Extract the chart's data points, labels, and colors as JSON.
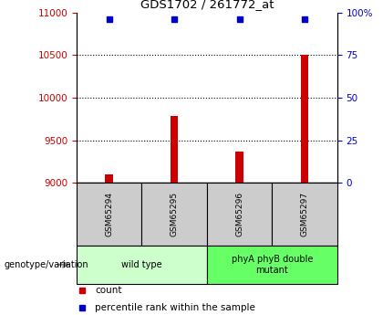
{
  "title": "GDS1702 / 261772_at",
  "samples": [
    "GSM65294",
    "GSM65295",
    "GSM65296",
    "GSM65297"
  ],
  "counts": [
    9100,
    9780,
    9370,
    10500
  ],
  "percentiles": [
    96,
    96,
    96,
    96
  ],
  "groups": [
    {
      "label": "wild type",
      "samples": [
        0,
        1
      ],
      "color": "#ccffcc"
    },
    {
      "label": "phyA phyB double\nmutant",
      "samples": [
        2,
        3
      ],
      "color": "#66ff66"
    }
  ],
  "ylim_left": [
    9000,
    11000
  ],
  "ylim_right": [
    0,
    100
  ],
  "left_ticks": [
    9000,
    9500,
    10000,
    10500,
    11000
  ],
  "right_ticks": [
    0,
    25,
    50,
    75,
    100
  ],
  "bar_color": "#cc0000",
  "dot_color": "#0000cc",
  "sample_box_color": "#cccccc",
  "legend_count_label": "count",
  "legend_pct_label": "percentile rank within the sample",
  "genotype_label": "genotype/variation",
  "bar_width": 0.12
}
